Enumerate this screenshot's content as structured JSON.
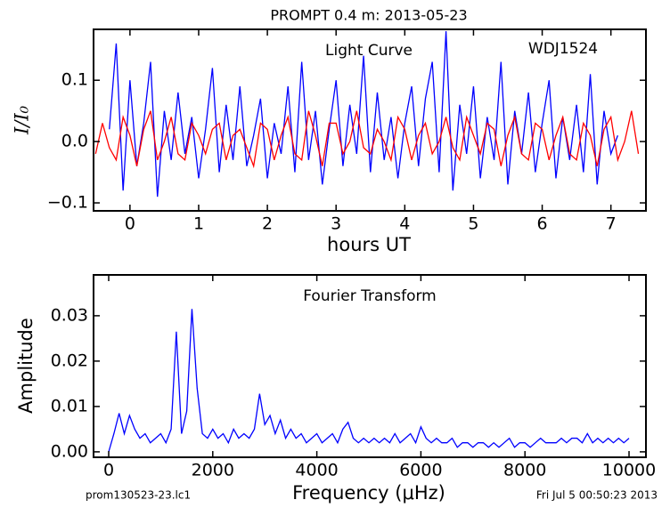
{
  "chart_data": [
    {
      "type": "line",
      "title": "PROMPT 0.4 m:  2013-05-23",
      "annotations": [
        "Light Curve",
        "WDJ1524"
      ],
      "xlabel": "hours UT",
      "ylabel": "I/I₀",
      "xlim": [
        -0.53,
        7.51
      ],
      "ylim": [
        -0.113,
        0.183
      ],
      "xticks": [
        0,
        1,
        2,
        3,
        4,
        5,
        6,
        7
      ],
      "yticks": [
        {
          "value": -0.1,
          "label": "−0.1"
        },
        {
          "value": 0,
          "label": "0.0"
        },
        0.1
      ],
      "series": [
        {
          "color": "#0000ff",
          "x": [
            -0.3,
            -0.2,
            -0.1,
            0.0,
            0.1,
            0.2,
            0.3,
            0.4,
            0.5,
            0.6,
            0.7,
            0.8,
            0.9,
            1.0,
            1.1,
            1.2,
            1.3,
            1.4,
            1.5,
            1.6,
            1.7,
            1.8,
            1.9,
            2.0,
            2.1,
            2.2,
            2.3,
            2.4,
            2.5,
            2.6,
            2.7,
            2.8,
            2.9,
            3.0,
            3.1,
            3.2,
            3.3,
            3.4,
            3.5,
            3.6,
            3.7,
            3.8,
            3.9,
            4.0,
            4.1,
            4.2,
            4.3,
            4.4,
            4.5,
            4.6,
            4.7,
            4.8,
            4.9,
            5.0,
            5.1,
            5.2,
            5.3,
            5.4,
            5.5,
            5.6,
            5.7,
            5.8,
            5.9,
            6.0,
            6.1,
            6.2,
            6.3,
            6.4,
            6.5,
            6.6,
            6.7,
            6.8,
            6.9,
            7.0,
            7.1
          ],
          "values": [
            0.02,
            0.16,
            -0.08,
            0.1,
            -0.04,
            0.03,
            0.13,
            -0.09,
            0.05,
            -0.03,
            0.08,
            -0.02,
            0.04,
            -0.06,
            0.02,
            0.12,
            -0.05,
            0.06,
            -0.03,
            0.09,
            -0.04,
            0.01,
            0.07,
            -0.06,
            0.03,
            -0.02,
            0.09,
            -0.05,
            0.13,
            -0.03,
            0.05,
            -0.07,
            0.02,
            0.1,
            -0.04,
            0.06,
            -0.02,
            0.14,
            -0.05,
            0.08,
            -0.03,
            0.04,
            -0.06,
            0.03,
            0.09,
            -0.04,
            0.07,
            0.13,
            -0.05,
            0.18,
            -0.08,
            0.06,
            -0.02,
            0.09,
            -0.06,
            0.04,
            -0.03,
            0.13,
            -0.07,
            0.05,
            -0.02,
            0.08,
            -0.05,
            0.03,
            0.1,
            -0.06,
            0.04,
            -0.03,
            0.06,
            -0.05,
            0.11,
            -0.07,
            0.05,
            -0.02,
            0.01
          ]
        },
        {
          "color": "#ff0000",
          "x": [
            -0.5,
            -0.4,
            -0.3,
            -0.2,
            -0.1,
            0.0,
            0.1,
            0.2,
            0.3,
            0.4,
            0.5,
            0.6,
            0.7,
            0.8,
            0.9,
            1.0,
            1.1,
            1.2,
            1.3,
            1.4,
            1.5,
            1.6,
            1.7,
            1.8,
            1.9,
            2.0,
            2.1,
            2.2,
            2.3,
            2.4,
            2.5,
            2.6,
            2.7,
            2.8,
            2.9,
            3.0,
            3.1,
            3.2,
            3.3,
            3.4,
            3.5,
            3.6,
            3.7,
            3.8,
            3.9,
            4.0,
            4.1,
            4.2,
            4.3,
            4.4,
            4.5,
            4.6,
            4.7,
            4.8,
            4.9,
            5.0,
            5.1,
            5.2,
            5.3,
            5.4,
            5.5,
            5.6,
            5.7,
            5.8,
            5.9,
            6.0,
            6.1,
            6.2,
            6.3,
            6.4,
            6.5,
            6.6,
            6.7,
            6.8,
            6.9,
            7.0,
            7.1,
            7.2,
            7.3,
            7.4
          ],
          "values": [
            -0.02,
            0.03,
            -0.01,
            -0.03,
            0.04,
            0.01,
            -0.04,
            0.02,
            0.05,
            -0.03,
            0.0,
            0.04,
            -0.02,
            -0.03,
            0.03,
            0.01,
            -0.02,
            0.02,
            0.03,
            -0.03,
            0.01,
            0.02,
            -0.01,
            -0.04,
            0.03,
            0.02,
            -0.03,
            0.01,
            0.04,
            -0.02,
            -0.03,
            0.05,
            0.01,
            -0.04,
            0.03,
            0.03,
            -0.02,
            0.0,
            0.05,
            -0.01,
            -0.02,
            0.02,
            0.0,
            -0.03,
            0.04,
            0.02,
            -0.03,
            0.01,
            0.03,
            -0.02,
            0.0,
            0.04,
            -0.01,
            -0.03,
            0.04,
            0.01,
            -0.02,
            0.03,
            0.02,
            -0.04,
            0.01,
            0.04,
            -0.02,
            -0.03,
            0.03,
            0.02,
            -0.03,
            0.01,
            0.04,
            -0.02,
            -0.03,
            0.03,
            0.01,
            -0.04,
            0.02,
            0.04,
            -0.03,
            0.0,
            0.05,
            -0.02
          ]
        }
      ]
    },
    {
      "type": "line",
      "annotations": [
        "Fourier Transform"
      ],
      "xlabel": "Frequency (μHz)",
      "ylabel": "Amplitude",
      "xlim": [
        -291,
        10325
      ],
      "ylim": [
        -0.0012,
        0.039
      ],
      "xticks": [
        0,
        2000,
        4000,
        6000,
        8000,
        10000
      ],
      "yticks": [
        {
          "value": 0,
          "label": "0.00"
        },
        {
          "value": 0.01,
          "label": "0.01"
        },
        {
          "value": 0.02,
          "label": "0.02"
        },
        {
          "value": 0.03,
          "label": "0.03"
        }
      ],
      "series": [
        {
          "color": "#0000ff",
          "x": [
            0,
            100,
            200,
            300,
            400,
            500,
            600,
            700,
            800,
            900,
            1000,
            1100,
            1200,
            1300,
            1400,
            1500,
            1600,
            1700,
            1800,
            1900,
            2000,
            2100,
            2200,
            2300,
            2400,
            2500,
            2600,
            2700,
            2800,
            2900,
            3000,
            3100,
            3200,
            3300,
            3400,
            3500,
            3600,
            3700,
            3800,
            3900,
            4000,
            4100,
            4200,
            4300,
            4400,
            4500,
            4600,
            4700,
            4800,
            4900,
            5000,
            5100,
            5200,
            5300,
            5400,
            5500,
            5600,
            5700,
            5800,
            5900,
            6000,
            6100,
            6200,
            6300,
            6400,
            6500,
            6600,
            6700,
            6800,
            6900,
            7000,
            7100,
            7200,
            7300,
            7400,
            7500,
            7600,
            7700,
            7800,
            7900,
            8000,
            8100,
            8200,
            8300,
            8400,
            8500,
            8600,
            8700,
            8800,
            8900,
            9000,
            9100,
            9200,
            9300,
            9400,
            9500,
            9600,
            9700,
            9800,
            9900,
            10000
          ],
          "values": [
            0.0,
            0.004,
            0.0085,
            0.004,
            0.008,
            0.005,
            0.003,
            0.004,
            0.002,
            0.003,
            0.004,
            0.002,
            0.005,
            0.0265,
            0.004,
            0.009,
            0.0315,
            0.014,
            0.004,
            0.003,
            0.005,
            0.003,
            0.004,
            0.002,
            0.005,
            0.003,
            0.004,
            0.003,
            0.005,
            0.0128,
            0.006,
            0.008,
            0.004,
            0.007,
            0.003,
            0.005,
            0.003,
            0.004,
            0.002,
            0.003,
            0.004,
            0.002,
            0.003,
            0.004,
            0.002,
            0.005,
            0.0065,
            0.003,
            0.002,
            0.003,
            0.002,
            0.003,
            0.002,
            0.003,
            0.002,
            0.004,
            0.002,
            0.003,
            0.004,
            0.002,
            0.0055,
            0.003,
            0.002,
            0.003,
            0.002,
            0.002,
            0.003,
            0.001,
            0.002,
            0.002,
            0.001,
            0.002,
            0.002,
            0.001,
            0.002,
            0.001,
            0.002,
            0.003,
            0.001,
            0.002,
            0.002,
            0.001,
            0.002,
            0.003,
            0.002,
            0.002,
            0.002,
            0.003,
            0.002,
            0.003,
            0.003,
            0.002,
            0.004,
            0.002,
            0.003,
            0.002,
            0.003,
            0.002,
            0.003,
            0.002,
            0.003
          ]
        }
      ]
    }
  ],
  "footer": {
    "left": "prom130523-23.lc1",
    "right": "Fri Jul  5 00:50:23 2013"
  }
}
